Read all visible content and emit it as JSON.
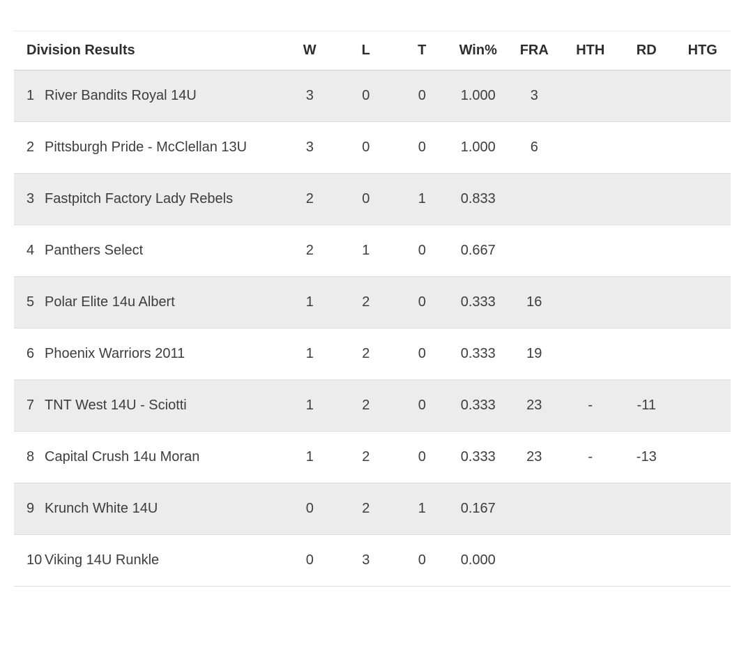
{
  "table": {
    "title": "Division Results",
    "columns": [
      "W",
      "L",
      "T",
      "Win%",
      "FRA",
      "HTH",
      "RD",
      "HTG"
    ],
    "rows": [
      {
        "rank": "1",
        "team": "River Bandits Royal 14U",
        "w": "3",
        "l": "0",
        "t": "0",
        "winpct": "1.000",
        "fra": "3",
        "hth": "",
        "rd": "",
        "htg": ""
      },
      {
        "rank": "2",
        "team": "Pittsburgh Pride - McClellan 13U",
        "w": "3",
        "l": "0",
        "t": "0",
        "winpct": "1.000",
        "fra": "6",
        "hth": "",
        "rd": "",
        "htg": ""
      },
      {
        "rank": "3",
        "team": "Fastpitch Factory Lady Rebels",
        "w": "2",
        "l": "0",
        "t": "1",
        "winpct": "0.833",
        "fra": "",
        "hth": "",
        "rd": "",
        "htg": ""
      },
      {
        "rank": "4",
        "team": "Panthers Select",
        "w": "2",
        "l": "1",
        "t": "0",
        "winpct": "0.667",
        "fra": "",
        "hth": "",
        "rd": "",
        "htg": ""
      },
      {
        "rank": "5",
        "team": "Polar Elite 14u Albert",
        "w": "1",
        "l": "2",
        "t": "0",
        "winpct": "0.333",
        "fra": "16",
        "hth": "",
        "rd": "",
        "htg": ""
      },
      {
        "rank": "6",
        "team": "Phoenix Warriors 2011",
        "w": "1",
        "l": "2",
        "t": "0",
        "winpct": "0.333",
        "fra": "19",
        "hth": "",
        "rd": "",
        "htg": ""
      },
      {
        "rank": "7",
        "team": "TNT West 14U - Sciotti",
        "w": "1",
        "l": "2",
        "t": "0",
        "winpct": "0.333",
        "fra": "23",
        "hth": "-",
        "rd": "-11",
        "htg": ""
      },
      {
        "rank": "8",
        "team": "Capital Crush 14u Moran",
        "w": "1",
        "l": "2",
        "t": "0",
        "winpct": "0.333",
        "fra": "23",
        "hth": "-",
        "rd": "-13",
        "htg": ""
      },
      {
        "rank": "9",
        "team": "Krunch White 14U",
        "w": "0",
        "l": "2",
        "t": "1",
        "winpct": "0.167",
        "fra": "",
        "hth": "",
        "rd": "",
        "htg": ""
      },
      {
        "rank": "10",
        "team": "Viking 14U Runkle",
        "w": "0",
        "l": "3",
        "t": "0",
        "winpct": "0.000",
        "fra": "",
        "hth": "",
        "rd": "",
        "htg": ""
      }
    ]
  },
  "colors": {
    "row_shaded_bg": "#ececec",
    "row_plain_bg": "#ffffff",
    "text": "#3d3d3d",
    "header_text": "#2e2e2e",
    "divider": "#dedede"
  }
}
